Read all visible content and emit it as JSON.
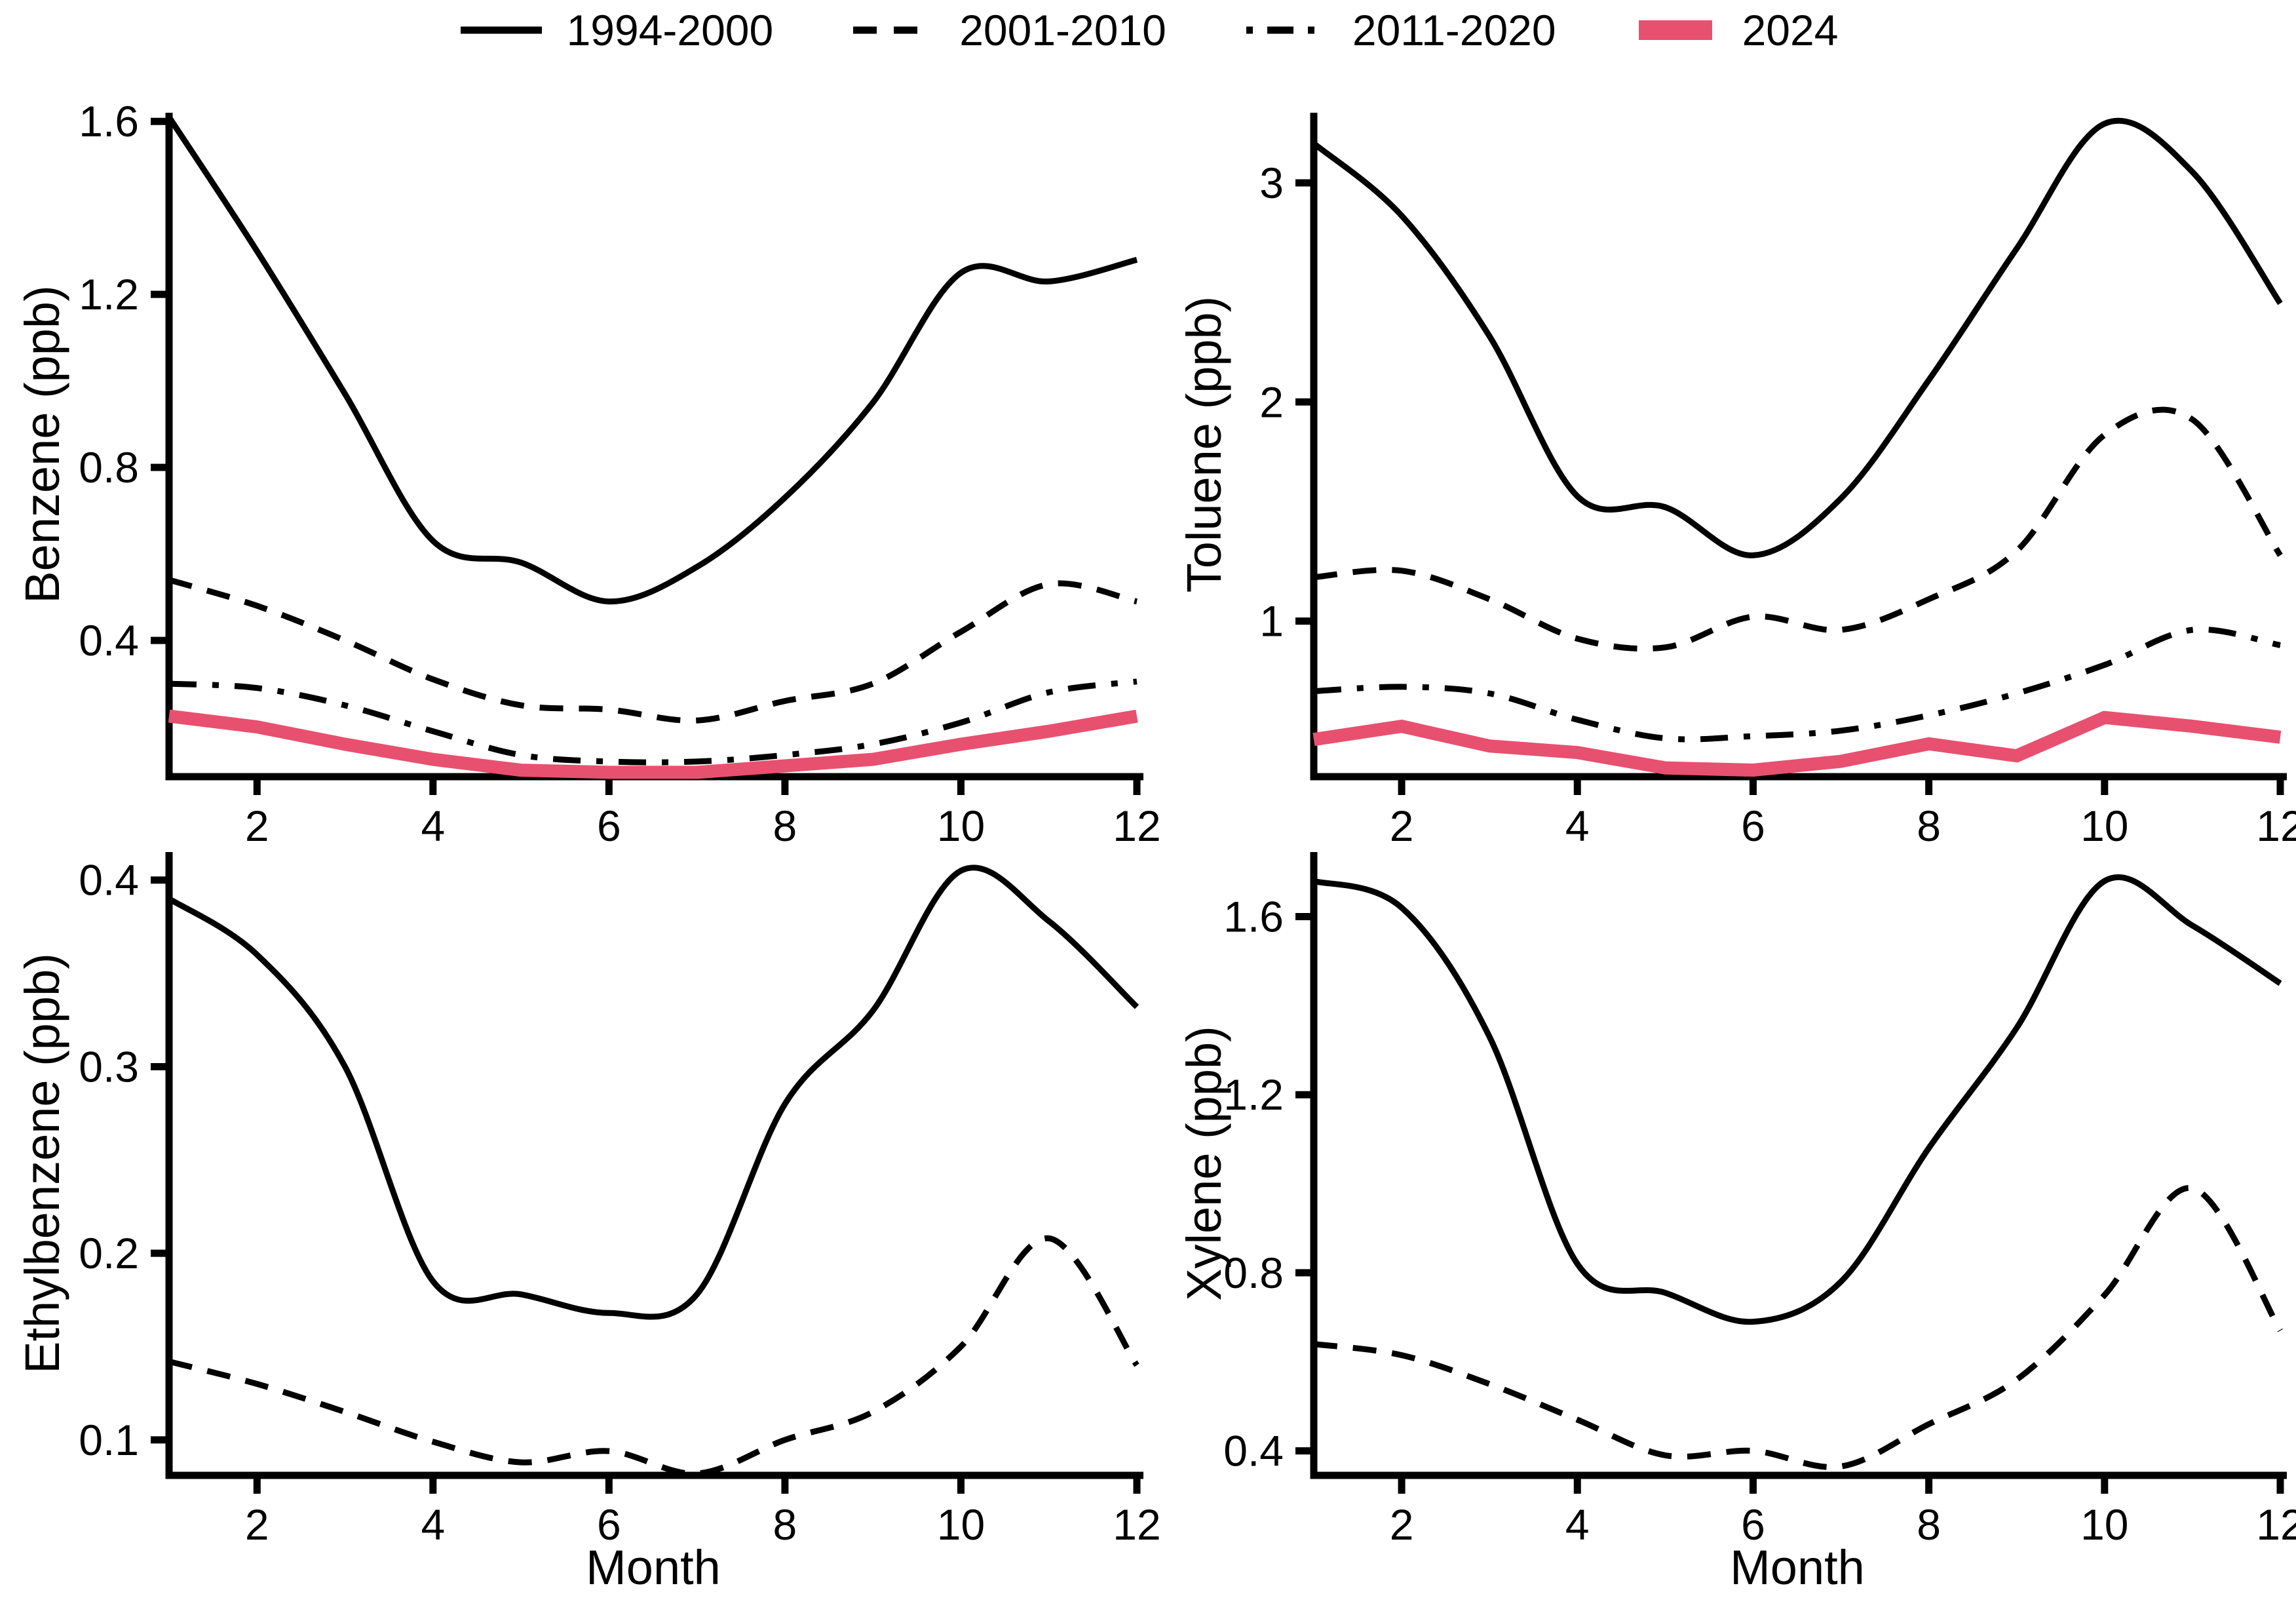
{
  "figure": {
    "background": "#FFFFFF",
    "accent_color": "#E8506F"
  },
  "legend": {
    "items": [
      {
        "label": "1994-2000",
        "style": "solid",
        "color": "#000000"
      },
      {
        "label": "2001-2010",
        "style": "dashed",
        "color": "#000000"
      },
      {
        "label": "2011-2020",
        "style": "dashdot",
        "color": "#000000"
      },
      {
        "label": "2024",
        "style": "thick",
        "color": "#E8506F"
      }
    ]
  },
  "axis": {
    "x_ticks": [
      "2",
      "4",
      "6",
      "8",
      "10",
      "12"
    ],
    "x_range": [
      1,
      12
    ]
  },
  "chart_data": [
    {
      "type": "line",
      "ylabel": "Benzene (ppb)",
      "xlabel": "",
      "x": [
        1,
        2,
        3,
        4,
        5,
        6,
        7,
        8,
        9,
        10,
        11,
        12
      ],
      "y_ticks": [
        "0.4",
        "0.8",
        "1.2",
        "1.6"
      ],
      "y_range": [
        0.085,
        1.62
      ],
      "grid": false,
      "series": [
        {
          "name": "1994-2000",
          "style": "solid",
          "color": "#000000",
          "values": [
            1.61,
            1.3,
            0.97,
            0.63,
            0.58,
            0.49,
            0.57,
            0.73,
            0.95,
            1.25,
            1.23,
            1.28
          ]
        },
        {
          "name": "2001-2010",
          "style": "dashed",
          "color": "#000000",
          "values": [
            0.54,
            0.48,
            0.4,
            0.31,
            0.25,
            0.24,
            0.215,
            0.26,
            0.3,
            0.42,
            0.53,
            0.49
          ]
        },
        {
          "name": "2011-2020",
          "style": "dashdot",
          "color": "#000000",
          "values": [
            0.3,
            0.29,
            0.25,
            0.19,
            0.135,
            0.12,
            0.12,
            0.135,
            0.16,
            0.21,
            0.28,
            0.305
          ]
        },
        {
          "name": "2024",
          "style": "linear",
          "color": "#E8506F",
          "values": [
            0.225,
            0.2,
            0.16,
            0.125,
            0.1,
            0.095,
            0.095,
            0.11,
            0.125,
            0.16,
            0.19,
            0.225
          ]
        }
      ]
    },
    {
      "type": "line",
      "ylabel": "Toluene (ppb)",
      "xlabel": "",
      "x": [
        1,
        2,
        3,
        4,
        5,
        6,
        7,
        8,
        9,
        10,
        11,
        12
      ],
      "y_ticks": [
        "1",
        "2",
        "3"
      ],
      "y_range": [
        0.29,
        3.32
      ],
      "grid": false,
      "series": [
        {
          "name": "1994-2000",
          "style": "solid",
          "color": "#000000",
          "values": [
            3.18,
            2.85,
            2.3,
            1.57,
            1.52,
            1.3,
            1.56,
            2.1,
            2.7,
            3.27,
            3.05,
            2.45
          ]
        },
        {
          "name": "2001-2010",
          "style": "dashed",
          "color": "#000000",
          "values": [
            1.2,
            1.23,
            1.1,
            0.92,
            0.88,
            1.02,
            0.96,
            1.1,
            1.32,
            1.85,
            1.92,
            1.3
          ]
        },
        {
          "name": "2011-2020",
          "style": "dashdot",
          "color": "#000000",
          "values": [
            0.68,
            0.7,
            0.67,
            0.55,
            0.465,
            0.475,
            0.5,
            0.57,
            0.67,
            0.8,
            0.96,
            0.89
          ]
        },
        {
          "name": "2024",
          "style": "linear",
          "color": "#E8506F",
          "values": [
            0.46,
            0.52,
            0.43,
            0.4,
            0.33,
            0.32,
            0.36,
            0.44,
            0.385,
            0.56,
            0.52,
            0.47
          ]
        }
      ]
    },
    {
      "type": "line",
      "ylabel": "Ethylbenzene (ppb)",
      "xlabel": "Month",
      "x": [
        1,
        2,
        3,
        4,
        5,
        6,
        7,
        8,
        9,
        10,
        11,
        12
      ],
      "y_ticks": [
        "0.1",
        "0.2",
        "0.3",
        "0.4"
      ],
      "y_range": [
        0.081,
        0.415
      ],
      "grid": false,
      "series": [
        {
          "name": "1994-2000",
          "style": "solid",
          "color": "#000000",
          "values": [
            0.39,
            0.36,
            0.3,
            0.185,
            0.178,
            0.168,
            0.178,
            0.28,
            0.33,
            0.405,
            0.378,
            0.332
          ]
        },
        {
          "name": "2001-2010",
          "style": "dashed",
          "color": "#000000",
          "values": [
            0.142,
            0.13,
            0.115,
            0.099,
            0.088,
            0.094,
            0.082,
            0.1,
            0.115,
            0.15,
            0.208,
            0.14
          ]
        }
      ]
    },
    {
      "type": "line",
      "ylabel": "Xylene (ppb)",
      "xlabel": "Month",
      "x": [
        1,
        2,
        3,
        4,
        5,
        6,
        7,
        8,
        9,
        10,
        11,
        12
      ],
      "y_ticks": [
        "0.4",
        "0.8",
        "1.2",
        "1.6"
      ],
      "y_range": [
        0.345,
        1.745
      ],
      "grid": false,
      "series": [
        {
          "name": "1994-2000",
          "style": "solid",
          "color": "#000000",
          "values": [
            1.68,
            1.62,
            1.33,
            0.82,
            0.755,
            0.69,
            0.78,
            1.08,
            1.35,
            1.68,
            1.58,
            1.45
          ]
        },
        {
          "name": "2001-2010",
          "style": "dashed",
          "color": "#000000",
          "values": [
            0.64,
            0.615,
            0.55,
            0.47,
            0.39,
            0.4,
            0.365,
            0.46,
            0.56,
            0.75,
            0.99,
            0.67
          ]
        }
      ]
    }
  ]
}
